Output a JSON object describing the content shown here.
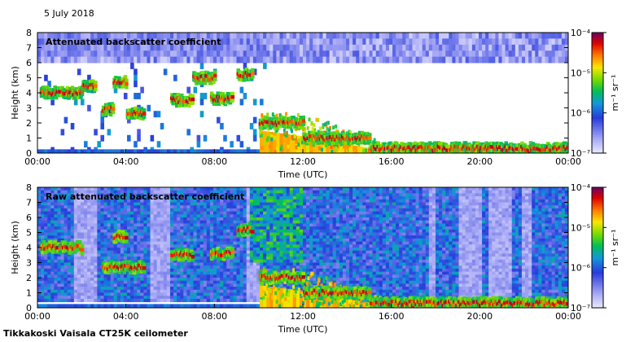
{
  "date_label": "5 July 2018",
  "footer": "Tikkakoski Vaisala CT25K ceilometer",
  "units_label": "m⁻¹ sr⁻¹",
  "chart_data": [
    {
      "type": "heatmap",
      "title": "Attenuated backscatter coefficient",
      "xlabel": "Time (UTC)",
      "ylabel": "Height (km)",
      "xlim": [
        "00:00",
        "00:00"
      ],
      "xticks": [
        "00:00",
        "04:00",
        "08:00",
        "12:00",
        "16:00",
        "20:00",
        "00:00"
      ],
      "ylim": [
        0,
        8
      ],
      "yticks": [
        "0",
        "1",
        "2",
        "3",
        "4",
        "5",
        "6",
        "7",
        "8"
      ],
      "colorbar": {
        "scale": "log",
        "range": [
          1e-07,
          0.0001
        ],
        "ticks": [
          "10⁻⁷",
          "10⁻⁶",
          "10⁻⁵",
          "10⁻⁴"
        ]
      },
      "cloud_layers": [
        {
          "t0": 0.1,
          "t1": 2.0,
          "h": 4.0
        },
        {
          "t0": 2.0,
          "t1": 2.6,
          "h": 4.4
        },
        {
          "t0": 3.4,
          "t1": 4.0,
          "h": 4.7
        },
        {
          "t0": 2.9,
          "t1": 3.4,
          "h": 2.9
        },
        {
          "t0": 4.0,
          "t1": 4.8,
          "h": 2.6
        },
        {
          "t0": 6.0,
          "t1": 7.0,
          "h": 3.5
        },
        {
          "t0": 7.0,
          "t1": 8.0,
          "h": 5.0
        },
        {
          "t0": 7.8,
          "t1": 8.8,
          "h": 3.6
        },
        {
          "t0": 9.0,
          "t1": 9.7,
          "h": 5.2
        },
        {
          "t0": 10.0,
          "t1": 12.0,
          "h": 2.0
        },
        {
          "t0": 12.0,
          "t1": 15.0,
          "h": 1.0
        },
        {
          "t0": 15.0,
          "t1": 24.0,
          "h": 0.3
        }
      ]
    },
    {
      "type": "heatmap",
      "title": "Raw attenuated backscatter coefficient",
      "xlabel": "Time (UTC)",
      "ylabel": "Height (km)",
      "xlim": [
        "00:00",
        "00:00"
      ],
      "xticks": [
        "00:00",
        "04:00",
        "08:00",
        "12:00",
        "16:00",
        "20:00",
        "00:00"
      ],
      "ylim": [
        0,
        8
      ],
      "yticks": [
        "0",
        "1",
        "2",
        "3",
        "4",
        "5",
        "6",
        "7",
        "8"
      ],
      "colorbar": {
        "scale": "log",
        "range": [
          1e-07,
          0.0001
        ],
        "ticks": [
          "10⁻⁷",
          "10⁻⁶",
          "10⁻⁵",
          "10⁻⁴"
        ]
      },
      "cloud_layers": [
        {
          "t0": 0.1,
          "t1": 2.0,
          "h": 4.0
        },
        {
          "t0": 2.9,
          "t1": 4.8,
          "h": 2.7
        },
        {
          "t0": 3.4,
          "t1": 4.0,
          "h": 4.7
        },
        {
          "t0": 6.0,
          "t1": 7.0,
          "h": 3.5
        },
        {
          "t0": 7.8,
          "t1": 8.8,
          "h": 3.6
        },
        {
          "t0": 9.0,
          "t1": 9.7,
          "h": 5.2
        },
        {
          "t0": 10.0,
          "t1": 12.0,
          "h": 2.0
        },
        {
          "t0": 12.0,
          "t1": 15.0,
          "h": 1.0
        },
        {
          "t0": 15.0,
          "t1": 24.0,
          "h": 0.3
        }
      ]
    }
  ]
}
